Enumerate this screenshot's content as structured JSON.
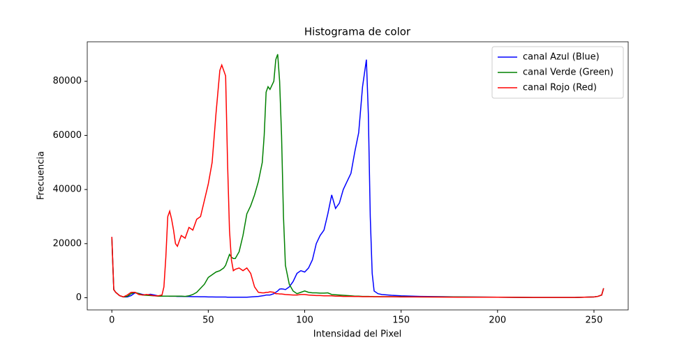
{
  "chart_data": {
    "type": "line",
    "title": "Histograma de color",
    "xlabel": "Intensidad del Pixel",
    "ylabel": "Frecuencia",
    "x": [
      0,
      1,
      2,
      4,
      6,
      8,
      10,
      12,
      14,
      16,
      18,
      20,
      22,
      24,
      26,
      27,
      28,
      29,
      30,
      31,
      32,
      33,
      34,
      35,
      36,
      38,
      40,
      42,
      44,
      46,
      48,
      50,
      52,
      54,
      56,
      57,
      58,
      59,
      60,
      61,
      62,
      63,
      64,
      66,
      68,
      70,
      72,
      74,
      76,
      78,
      79,
      80,
      81,
      82,
      84,
      85,
      86,
      87,
      88,
      89,
      90,
      92,
      94,
      96,
      98,
      100,
      102,
      104,
      106,
      108,
      110,
      112,
      114,
      116,
      118,
      120,
      122,
      124,
      126,
      128,
      130,
      131,
      132,
      133,
      134,
      135,
      136,
      138,
      140,
      145,
      150,
      160,
      180,
      200,
      220,
      240,
      250,
      252,
      254,
      255
    ],
    "series": [
      {
        "name": "canal Azul (Blue)",
        "color": "#0000ff",
        "values": [
          22500,
          3000,
          2000,
          800,
          300,
          300,
          800,
          1800,
          1600,
          1200,
          1000,
          1300,
          1000,
          700,
          600,
          600,
          600,
          600,
          550,
          550,
          550,
          550,
          500,
          500,
          500,
          450,
          450,
          400,
          400,
          350,
          350,
          300,
          300,
          250,
          250,
          250,
          250,
          250,
          200,
          200,
          200,
          200,
          200,
          200,
          200,
          200,
          300,
          400,
          500,
          700,
          800,
          1000,
          1000,
          1000,
          1500,
          2000,
          2500,
          3200,
          3300,
          3200,
          3000,
          4000,
          6000,
          9000,
          10000,
          9500,
          11000,
          14000,
          20000,
          23000,
          25000,
          31000,
          38000,
          33000,
          35000,
          40000,
          43000,
          46000,
          54000,
          61000,
          78000,
          83000,
          88000,
          68000,
          30000,
          9000,
          2500,
          1500,
          1200,
          900,
          700,
          500,
          300,
          200,
          100,
          100,
          300,
          500,
          1000,
          3500
        ]
      },
      {
        "name": "canal Verde (Green)",
        "color": "#008000",
        "values": [
          22000,
          3000,
          2000,
          800,
          300,
          500,
          1500,
          2000,
          1500,
          1000,
          900,
          800,
          700,
          600,
          600,
          600,
          600,
          600,
          600,
          600,
          600,
          600,
          600,
          600,
          600,
          500,
          700,
          1200,
          2000,
          3500,
          5000,
          7500,
          8500,
          9500,
          10000,
          10500,
          11000,
          12000,
          14000,
          16000,
          15000,
          14500,
          14500,
          17000,
          23000,
          31000,
          34000,
          38000,
          43000,
          50000,
          60000,
          76000,
          78000,
          77000,
          80000,
          88000,
          90000,
          80000,
          60000,
          30000,
          12000,
          5000,
          2500,
          1500,
          2000,
          2500,
          2000,
          1800,
          1800,
          1700,
          1700,
          1800,
          1200,
          1100,
          1000,
          900,
          800,
          700,
          600,
          600,
          500,
          500,
          500,
          500,
          450,
          450,
          400,
          400,
          400,
          400,
          400,
          300,
          300,
          200,
          100,
          100,
          300,
          500,
          1000,
          3500
        ]
      },
      {
        "name": "canal Rojo (Red)",
        "color": "#ff0000",
        "values": [
          22500,
          3000,
          2000,
          800,
          300,
          1000,
          2000,
          2000,
          1200,
          1000,
          1200,
          1000,
          700,
          700,
          1000,
          4000,
          15000,
          30000,
          32000,
          29000,
          25000,
          20000,
          19000,
          21000,
          23000,
          22000,
          26000,
          25000,
          29000,
          30000,
          36000,
          42000,
          50000,
          68000,
          84000,
          86000,
          84000,
          82000,
          50000,
          25000,
          14000,
          10000,
          10500,
          11000,
          10000,
          11000,
          9000,
          4000,
          2000,
          1800,
          1800,
          2000,
          2000,
          2200,
          2000,
          1500,
          1500,
          1400,
          1400,
          1300,
          1200,
          1100,
          1000,
          1000,
          1200,
          1200,
          1000,
          900,
          800,
          800,
          700,
          700,
          700,
          600,
          600,
          500,
          500,
          500,
          450,
          450,
          400,
          400,
          400,
          400,
          400,
          400,
          400,
          400,
          350,
          350,
          300,
          300,
          200,
          200,
          100,
          100,
          300,
          500,
          1000,
          3500
        ]
      }
    ],
    "xlim": [
      -12.75,
      267.75
    ],
    "ylim": [
      -4500,
      94600
    ],
    "xticks": [
      0,
      50,
      100,
      150,
      200,
      250
    ],
    "yticks": [
      0,
      20000,
      40000,
      60000,
      80000
    ],
    "legend": "upper right"
  }
}
